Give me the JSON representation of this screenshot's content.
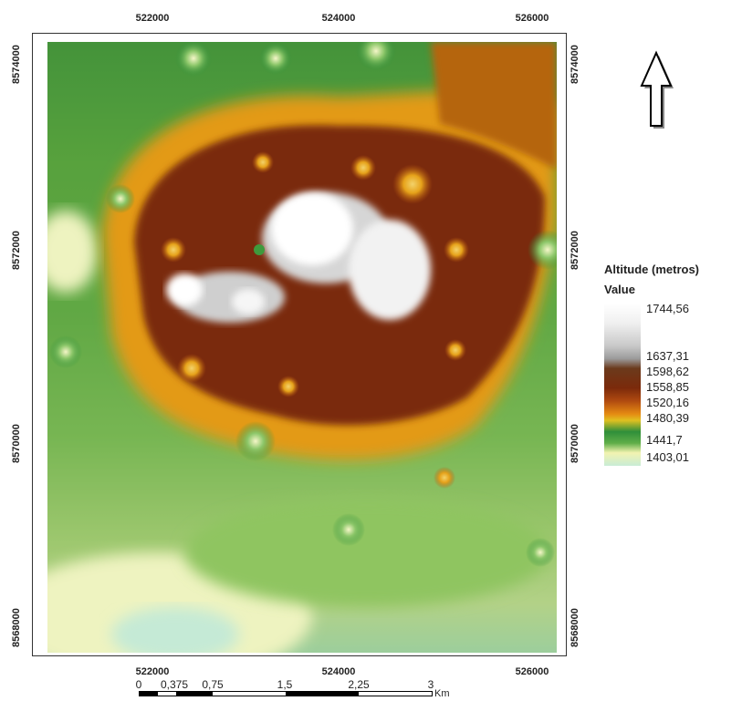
{
  "map": {
    "x_ticks_top": [
      "522000",
      "524000",
      "526000"
    ],
    "x_ticks_bottom": [
      "522000",
      "524000",
      "526000"
    ],
    "y_ticks_left": [
      "8574000",
      "8572000",
      "8570000",
      "8568000"
    ],
    "y_ticks_right": [
      "8574000",
      "8572000",
      "8570000",
      "8568000"
    ]
  },
  "legend": {
    "title": "Altitude (metros)",
    "subtitle": "Value",
    "labels": [
      "1744,56",
      "1637,31",
      "1598,62",
      "1558,85",
      "1520,16",
      "1480,39",
      "1441,7",
      "1403,01"
    ]
  },
  "scalebar": {
    "labels": [
      "0",
      "0,375",
      "0,75",
      "1,5",
      "2,25",
      "3"
    ],
    "unit": "Km"
  },
  "colors": {
    "high": "#ffffff",
    "mid_high": "#7b2a0b",
    "mid": "#e58a12",
    "low_mid": "#2f8f3a",
    "low": "#f2f3b0",
    "lowest": "#c8ecd6"
  },
  "north_arrow": "north-arrow-icon"
}
